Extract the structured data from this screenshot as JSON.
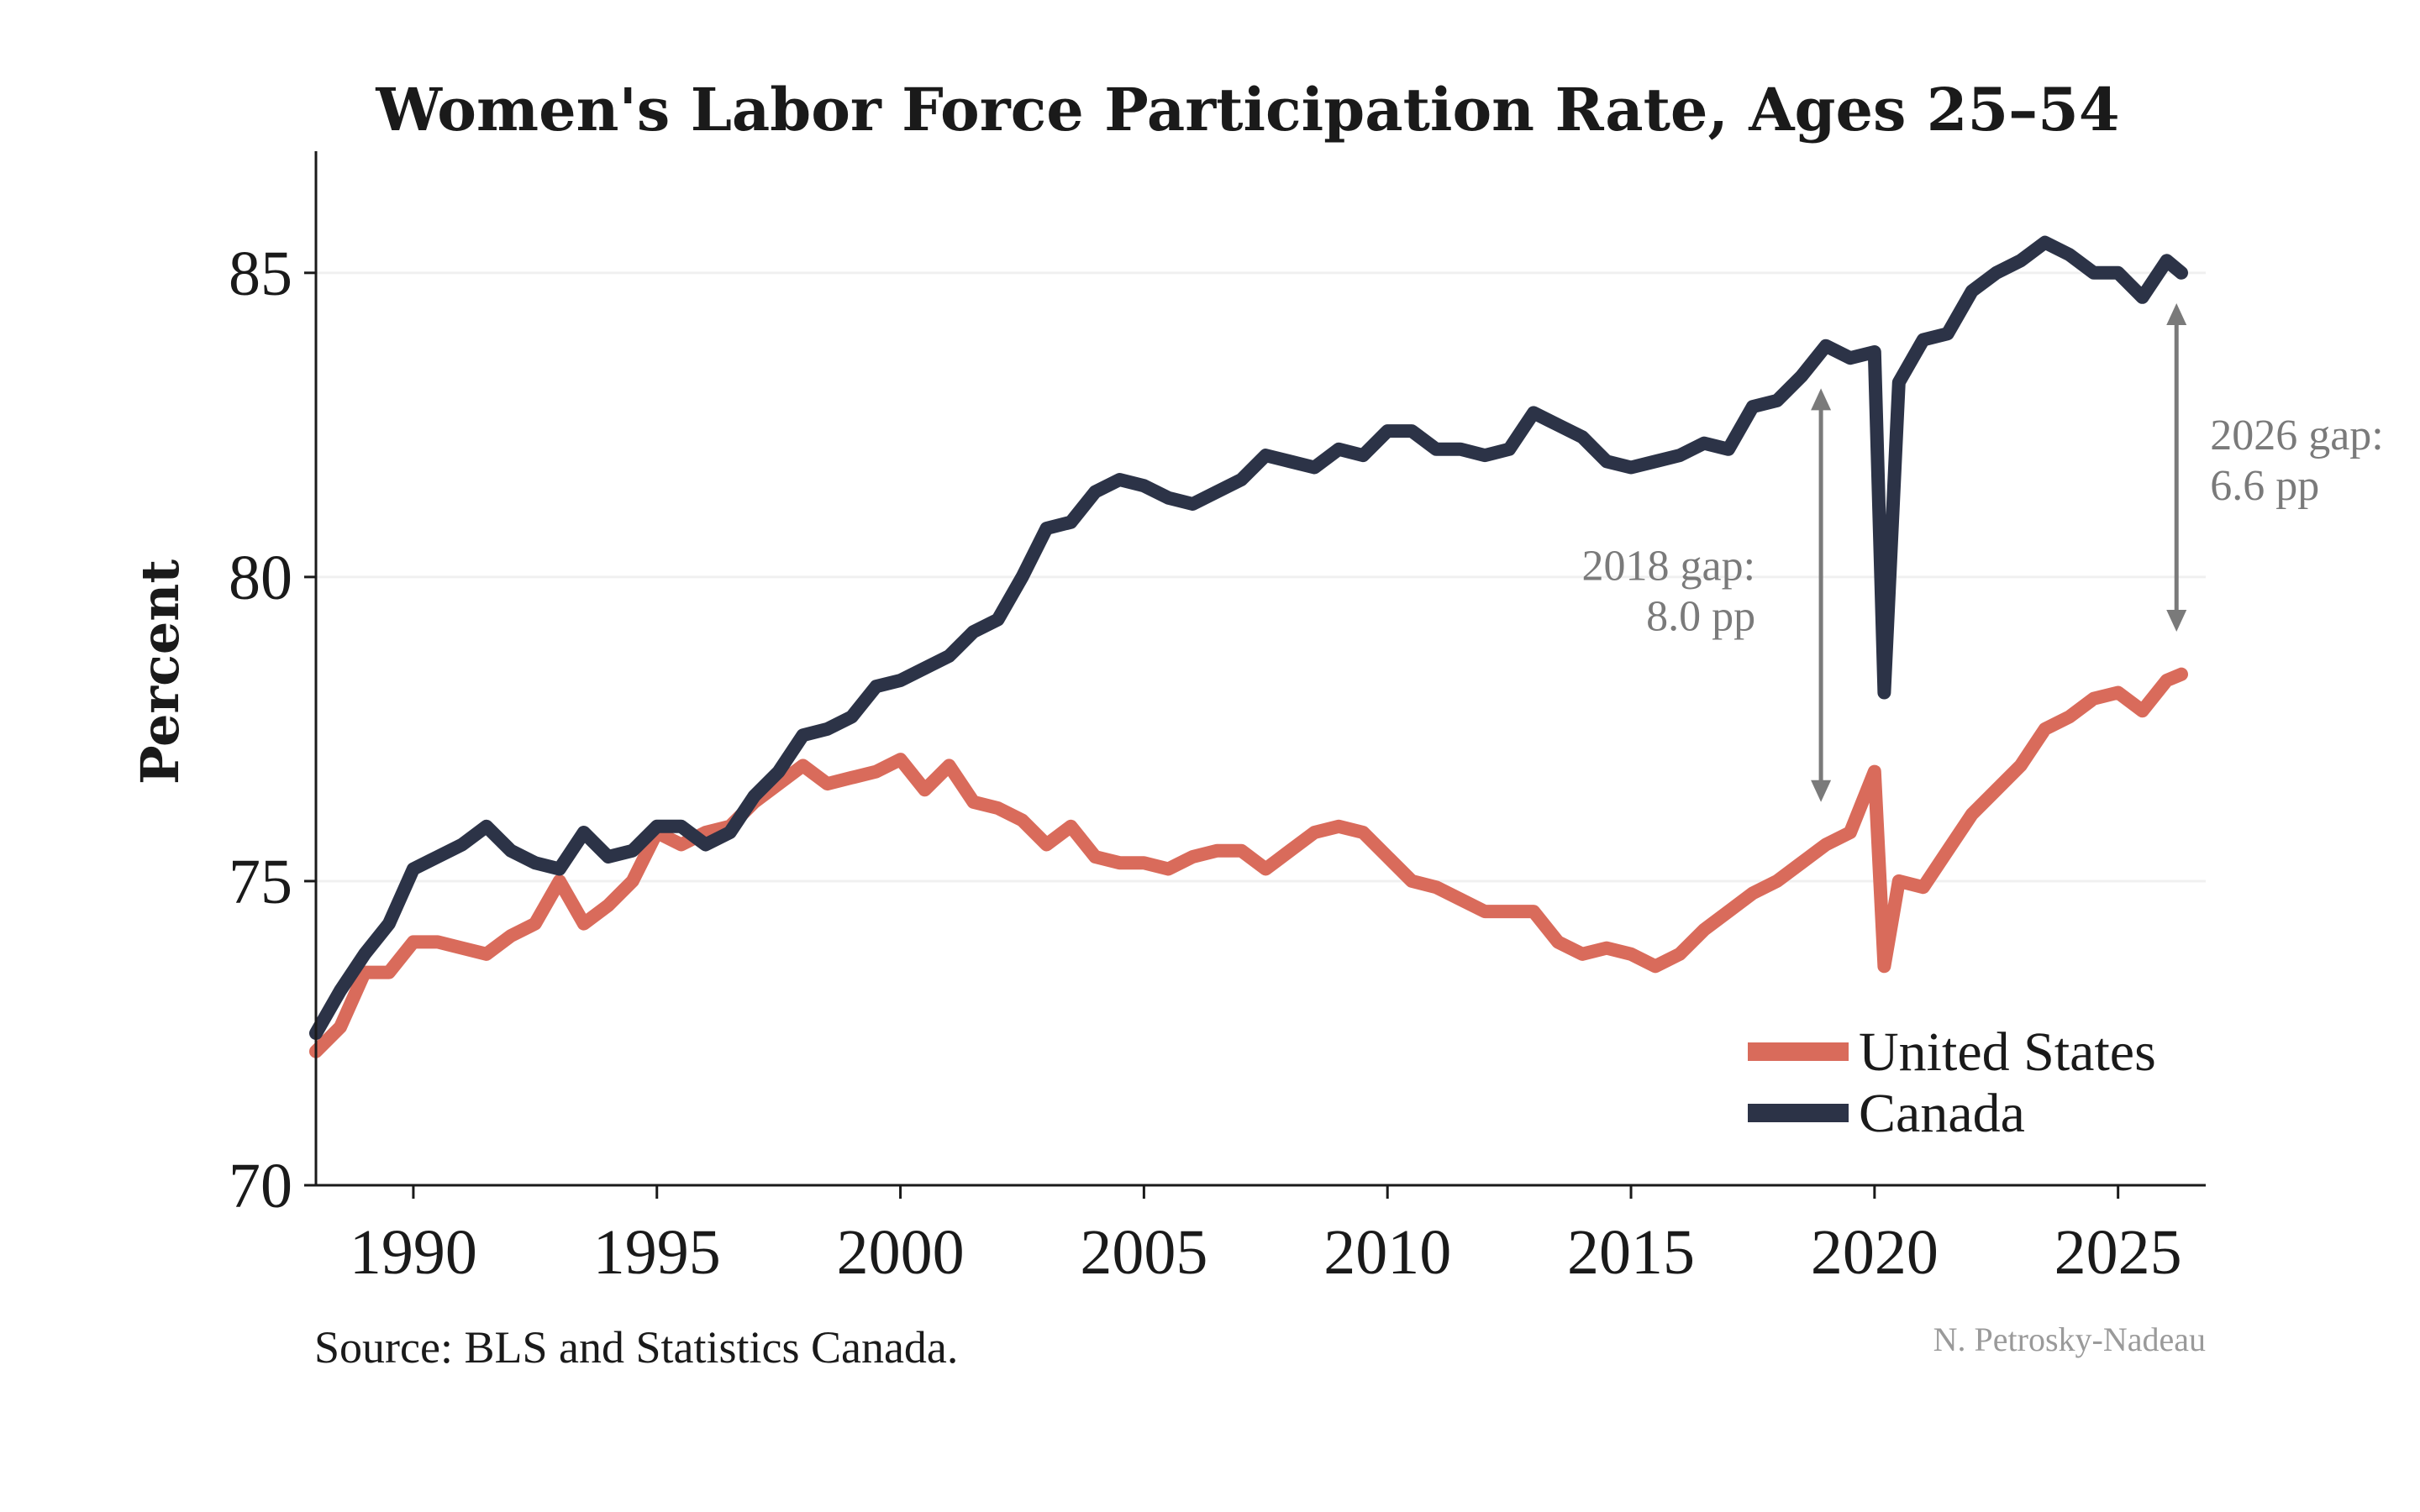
{
  "chart_data": {
    "type": "line",
    "title": "Women's Labor Force Participation Rate, Ages 25–54",
    "xlabel": "",
    "ylabel": "Percent",
    "xlim": [
      1988.0,
      2026.8
    ],
    "ylim": [
      70,
      87
    ],
    "xticks": [
      1990,
      1995,
      2000,
      2005,
      2010,
      2015,
      2020,
      2025
    ],
    "yticks": [
      70,
      75,
      80,
      85
    ],
    "grid": "y-faint",
    "legend_position": "bottom-right",
    "series": [
      {
        "name": "United States",
        "color": "#d96b5b",
        "points": [
          [
            1988.0,
            72.2
          ],
          [
            1988.5,
            72.6
          ],
          [
            1989.0,
            73.5
          ],
          [
            1989.5,
            73.5
          ],
          [
            1990.0,
            74.0
          ],
          [
            1990.5,
            74.0
          ],
          [
            1991.0,
            73.9
          ],
          [
            1991.5,
            73.8
          ],
          [
            1992.0,
            74.1
          ],
          [
            1992.5,
            74.3
          ],
          [
            1993.0,
            75.0
          ],
          [
            1993.5,
            74.3
          ],
          [
            1994.0,
            74.6
          ],
          [
            1994.5,
            75.0
          ],
          [
            1995.0,
            75.8
          ],
          [
            1995.5,
            75.6
          ],
          [
            1996.0,
            75.8
          ],
          [
            1996.5,
            75.9
          ],
          [
            1997.0,
            76.3
          ],
          [
            1997.5,
            76.6
          ],
          [
            1998.0,
            76.9
          ],
          [
            1998.5,
            76.6
          ],
          [
            1999.0,
            76.7
          ],
          [
            1999.5,
            76.8
          ],
          [
            2000.0,
            77.0
          ],
          [
            2000.5,
            76.5
          ],
          [
            2001.0,
            76.9
          ],
          [
            2001.5,
            76.3
          ],
          [
            2002.0,
            76.2
          ],
          [
            2002.5,
            76.0
          ],
          [
            2003.0,
            75.6
          ],
          [
            2003.5,
            75.9
          ],
          [
            2004.0,
            75.4
          ],
          [
            2004.5,
            75.3
          ],
          [
            2005.0,
            75.3
          ],
          [
            2005.5,
            75.2
          ],
          [
            2006.0,
            75.4
          ],
          [
            2006.5,
            75.5
          ],
          [
            2007.0,
            75.5
          ],
          [
            2007.5,
            75.2
          ],
          [
            2008.0,
            75.5
          ],
          [
            2008.5,
            75.8
          ],
          [
            2009.0,
            75.9
          ],
          [
            2009.5,
            75.8
          ],
          [
            2010.0,
            75.4
          ],
          [
            2010.5,
            75.0
          ],
          [
            2011.0,
            74.9
          ],
          [
            2011.5,
            74.7
          ],
          [
            2012.0,
            74.5
          ],
          [
            2012.5,
            74.5
          ],
          [
            2013.0,
            74.5
          ],
          [
            2013.5,
            74.0
          ],
          [
            2014.0,
            73.8
          ],
          [
            2014.5,
            73.9
          ],
          [
            2015.0,
            73.8
          ],
          [
            2015.5,
            73.6
          ],
          [
            2016.0,
            73.8
          ],
          [
            2016.5,
            74.2
          ],
          [
            2017.0,
            74.5
          ],
          [
            2017.5,
            74.8
          ],
          [
            2018.0,
            75.0
          ],
          [
            2018.5,
            75.3
          ],
          [
            2019.0,
            75.6
          ],
          [
            2019.5,
            75.8
          ],
          [
            2020.0,
            76.8
          ],
          [
            2020.2,
            73.6
          ],
          [
            2020.5,
            75.0
          ],
          [
            2021.0,
            74.9
          ],
          [
            2021.5,
            75.5
          ],
          [
            2022.0,
            76.1
          ],
          [
            2022.5,
            76.5
          ],
          [
            2023.0,
            76.9
          ],
          [
            2023.5,
            77.5
          ],
          [
            2024.0,
            77.7
          ],
          [
            2024.5,
            78.0
          ],
          [
            2025.0,
            78.1
          ],
          [
            2025.5,
            77.8
          ],
          [
            2026.0,
            78.3
          ],
          [
            2026.3,
            78.4
          ]
        ]
      },
      {
        "name": "Canada",
        "color": "#2c3347",
        "points": [
          [
            1988.0,
            72.5
          ],
          [
            1988.5,
            73.2
          ],
          [
            1989.0,
            73.8
          ],
          [
            1989.5,
            74.3
          ],
          [
            1990.0,
            75.2
          ],
          [
            1990.5,
            75.4
          ],
          [
            1991.0,
            75.6
          ],
          [
            1991.5,
            75.9
          ],
          [
            1992.0,
            75.5
          ],
          [
            1992.5,
            75.3
          ],
          [
            1993.0,
            75.2
          ],
          [
            1993.5,
            75.8
          ],
          [
            1994.0,
            75.4
          ],
          [
            1994.5,
            75.5
          ],
          [
            1995.0,
            75.9
          ],
          [
            1995.5,
            75.9
          ],
          [
            1996.0,
            75.6
          ],
          [
            1996.5,
            75.8
          ],
          [
            1997.0,
            76.4
          ],
          [
            1997.5,
            76.8
          ],
          [
            1998.0,
            77.4
          ],
          [
            1998.5,
            77.5
          ],
          [
            1999.0,
            77.7
          ],
          [
            1999.5,
            78.2
          ],
          [
            2000.0,
            78.3
          ],
          [
            2000.5,
            78.5
          ],
          [
            2001.0,
            78.7
          ],
          [
            2001.5,
            79.1
          ],
          [
            2002.0,
            79.3
          ],
          [
            2002.5,
            80.0
          ],
          [
            2003.0,
            80.8
          ],
          [
            2003.5,
            80.9
          ],
          [
            2004.0,
            81.4
          ],
          [
            2004.5,
            81.6
          ],
          [
            2005.0,
            81.5
          ],
          [
            2005.5,
            81.3
          ],
          [
            2006.0,
            81.2
          ],
          [
            2006.5,
            81.4
          ],
          [
            2007.0,
            81.6
          ],
          [
            2007.5,
            82.0
          ],
          [
            2008.0,
            81.9
          ],
          [
            2008.5,
            81.8
          ],
          [
            2009.0,
            82.1
          ],
          [
            2009.5,
            82.0
          ],
          [
            2010.0,
            82.4
          ],
          [
            2010.5,
            82.4
          ],
          [
            2011.0,
            82.1
          ],
          [
            2011.5,
            82.1
          ],
          [
            2012.0,
            82.0
          ],
          [
            2012.5,
            82.1
          ],
          [
            2013.0,
            82.7
          ],
          [
            2013.5,
            82.5
          ],
          [
            2014.0,
            82.3
          ],
          [
            2014.5,
            81.9
          ],
          [
            2015.0,
            81.8
          ],
          [
            2015.5,
            81.9
          ],
          [
            2016.0,
            82.0
          ],
          [
            2016.5,
            82.2
          ],
          [
            2017.0,
            82.1
          ],
          [
            2017.5,
            82.8
          ],
          [
            2018.0,
            82.9
          ],
          [
            2018.5,
            83.3
          ],
          [
            2019.0,
            83.8
          ],
          [
            2019.5,
            83.6
          ],
          [
            2020.0,
            83.7
          ],
          [
            2020.2,
            78.1
          ],
          [
            2020.5,
            83.2
          ],
          [
            2021.0,
            83.9
          ],
          [
            2021.5,
            84.0
          ],
          [
            2022.0,
            84.7
          ],
          [
            2022.5,
            85.0
          ],
          [
            2023.0,
            85.2
          ],
          [
            2023.5,
            85.5
          ],
          [
            2024.0,
            85.3
          ],
          [
            2024.5,
            85.0
          ],
          [
            2025.0,
            85.0
          ],
          [
            2025.5,
            84.6
          ],
          [
            2026.0,
            85.2
          ],
          [
            2026.3,
            85.0
          ]
        ]
      }
    ],
    "annotations": [
      {
        "line1": "2018 gap:",
        "line2": "8.0 pp",
        "x": 2018.9,
        "y_from": 83.1,
        "y_to": 76.3
      },
      {
        "line1": "2026 gap:",
        "line2": "6.6 pp",
        "x": 2026.2,
        "y_from": 84.5,
        "y_to": 79.1
      }
    ]
  },
  "source": "Source: BLS and Statistics Canada.",
  "credit": "N. Petrosky-Nadeau"
}
